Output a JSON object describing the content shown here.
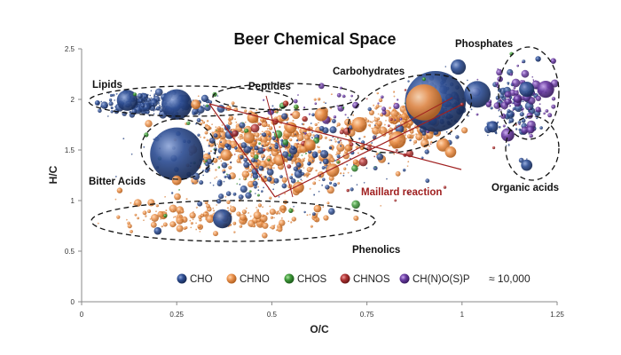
{
  "chart_data": {
    "type": "scatter",
    "title": "Beer Chemical Space",
    "xlabel": "O/C",
    "ylabel": "H/C",
    "xlim": [
      0,
      1.25
    ],
    "ylim": [
      0,
      2.5
    ],
    "x_ticks": [
      "0",
      "0.25",
      "0.5",
      "0.75",
      "1",
      "1.25"
    ],
    "y_ticks": [
      "0",
      "0.5",
      "1",
      "1.5",
      "2",
      "2.5"
    ],
    "grid": false,
    "legend_position": "bottom-right",
    "compound_count_label": "≈ 10,000",
    "series": [
      {
        "name": "CHO",
        "color": "#2b4a8a"
      },
      {
        "name": "CHNO",
        "color": "#e8914a"
      },
      {
        "name": "CHOS",
        "color": "#3f9a3a"
      },
      {
        "name": "CHNOS",
        "color": "#b03434"
      },
      {
        "name": "CH(N)O(S)P",
        "color": "#6b3da3"
      }
    ],
    "regions": [
      {
        "name": "Lipids",
        "label": "Lipids",
        "o_c": [
          0,
          0.35
        ],
        "h_c": [
          1.88,
          2.05
        ]
      },
      {
        "name": "Peptides",
        "label": "Peptides",
        "o_c": [
          0.32,
          0.67
        ],
        "h_c": [
          1.8,
          2.02
        ]
      },
      {
        "name": "Carbohydrates",
        "label": "Carbohydrates",
        "o_c": [
          0.72,
          1.05
        ],
        "h_c": [
          1.6,
          2.2
        ]
      },
      {
        "name": "Phosphates",
        "label": "Phosphates",
        "o_c": [
          1.0,
          1.25
        ],
        "h_c": [
          1.5,
          2.5
        ]
      },
      {
        "name": "Organic acids",
        "label": "Organic acids",
        "o_c": [
          1.0,
          1.25
        ],
        "h_c": [
          1.2,
          1.6
        ]
      },
      {
        "name": "Bitter Acids",
        "label": "Bitter Acids",
        "o_c": [
          0.15,
          0.35
        ],
        "h_c": [
          1.3,
          1.6
        ]
      },
      {
        "name": "Phenolics",
        "label": "Phenolics",
        "o_c": [
          0.03,
          0.72
        ],
        "h_c": [
          0.62,
          1.0
        ]
      }
    ],
    "annotation": {
      "label": "Maillard reaction",
      "color": "#a02020"
    },
    "highlight_points": [
      {
        "series": "CHO",
        "x": 0.12,
        "y": 1.99,
        "size": 0.055
      },
      {
        "series": "CHO",
        "x": 0.25,
        "y": 1.95,
        "size": 0.08
      },
      {
        "series": "CHO",
        "x": 0.25,
        "y": 1.46,
        "size": 0.14
      },
      {
        "series": "CHO",
        "x": 0.37,
        "y": 0.82,
        "size": 0.05
      },
      {
        "series": "CHO",
        "x": 0.2,
        "y": 0.7,
        "size": 0.02
      },
      {
        "series": "CHO",
        "x": 0.93,
        "y": 1.98,
        "size": 0.16
      },
      {
        "series": "CHO",
        "x": 0.99,
        "y": 2.32,
        "size": 0.04
      },
      {
        "series": "CHO",
        "x": 1.04,
        "y": 2.05,
        "size": 0.07
      },
      {
        "series": "CHO",
        "x": 1.08,
        "y": 1.73,
        "size": 0.03
      },
      {
        "series": "CHO",
        "x": 1.17,
        "y": 1.35,
        "size": 0.03
      },
      {
        "series": "CHO",
        "x": 1.17,
        "y": 2.1,
        "size": 0.04
      },
      {
        "series": "CHO",
        "x": 1.2,
        "y": 2.4,
        "size": 0.015
      },
      {
        "series": "CHNO",
        "x": 0.9,
        "y": 1.97,
        "size": 0.095
      },
      {
        "series": "CHNO",
        "x": 0.73,
        "y": 1.75,
        "size": 0.04
      },
      {
        "series": "CHNO",
        "x": 0.83,
        "y": 1.6,
        "size": 0.045
      },
      {
        "series": "CHNO",
        "x": 0.95,
        "y": 1.55,
        "size": 0.035
      },
      {
        "series": "CHNO",
        "x": 0.63,
        "y": 1.85,
        "size": 0.035
      },
      {
        "series": "CHNO",
        "x": 0.55,
        "y": 1.72,
        "size": 0.03
      },
      {
        "series": "CHNO",
        "x": 0.45,
        "y": 1.82,
        "size": 0.03
      },
      {
        "series": "CHNO",
        "x": 0.38,
        "y": 1.45,
        "size": 0.03
      },
      {
        "series": "CHNO",
        "x": 0.57,
        "y": 1.13,
        "size": 0.03
      },
      {
        "series": "CHNO",
        "x": 0.66,
        "y": 1.3,
        "size": 0.035
      },
      {
        "series": "CHNO",
        "x": 0.97,
        "y": 1.48,
        "size": 0.03
      },
      {
        "series": "CHNO",
        "x": 0.3,
        "y": 1.95,
        "size": 0.025
      },
      {
        "series": "CHNO",
        "x": 0.6,
        "y": 1.55,
        "size": 0.03
      },
      {
        "series": "CHNO",
        "x": 0.52,
        "y": 1.4,
        "size": 0.03
      },
      {
        "series": "CHNO",
        "x": 0.44,
        "y": 1.62,
        "size": 0.03
      },
      {
        "series": "CHNO",
        "x": 0.25,
        "y": 1.2,
        "size": 0.025
      },
      {
        "series": "CHNO",
        "x": 0.62,
        "y": 0.92,
        "size": 0.02
      },
      {
        "series": "CHNO",
        "x": 0.1,
        "y": 1.1,
        "size": 0.015
      },
      {
        "series": "CH(N)O(S)P",
        "x": 1.22,
        "y": 2.1,
        "size": 0.045
      },
      {
        "series": "CH(N)O(S)P",
        "x": 1.12,
        "y": 1.65,
        "size": 0.035
      },
      {
        "series": "CH(N)O(S)P",
        "x": 1.18,
        "y": 1.7,
        "size": 0.02
      },
      {
        "series": "CH(N)O(S)P",
        "x": 1.24,
        "y": 2.38,
        "size": 0.015
      },
      {
        "series": "CH(N)O(S)P",
        "x": 1.1,
        "y": 2.2,
        "size": 0.015
      },
      {
        "series": "CH(N)O(S)P",
        "x": 1.07,
        "y": 1.95,
        "size": 0.015
      },
      {
        "series": "CH(N)O(S)P",
        "x": 1.2,
        "y": 1.9,
        "size": 0.015
      },
      {
        "series": "CHOS",
        "x": 0.35,
        "y": 2.05,
        "size": 0.012
      },
      {
        "series": "CHOS",
        "x": 0.17,
        "y": 1.65,
        "size": 0.012
      },
      {
        "series": "CHOS",
        "x": 0.55,
        "y": 0.9,
        "size": 0.012
      },
      {
        "series": "CHOS",
        "x": 0.22,
        "y": 0.85,
        "size": 0.01
      },
      {
        "series": "CHOS",
        "x": 0.14,
        "y": 2.05,
        "size": 0.01
      },
      {
        "series": "CHOS",
        "x": 0.9,
        "y": 2.2,
        "size": 0.01
      },
      {
        "series": "CHOS",
        "x": 1.13,
        "y": 2.45,
        "size": 0.01
      },
      {
        "series": "CHNOS",
        "x": 0.85,
        "y": 1.45,
        "size": 0.01
      },
      {
        "series": "CHNOS",
        "x": 0.48,
        "y": 1.5,
        "size": 0.008
      },
      {
        "series": "CHNOS",
        "x": 0.7,
        "y": 1.1,
        "size": 0.008
      },
      {
        "series": "CHNOS",
        "x": 1.0,
        "y": 1.95,
        "size": 0.01
      }
    ]
  }
}
